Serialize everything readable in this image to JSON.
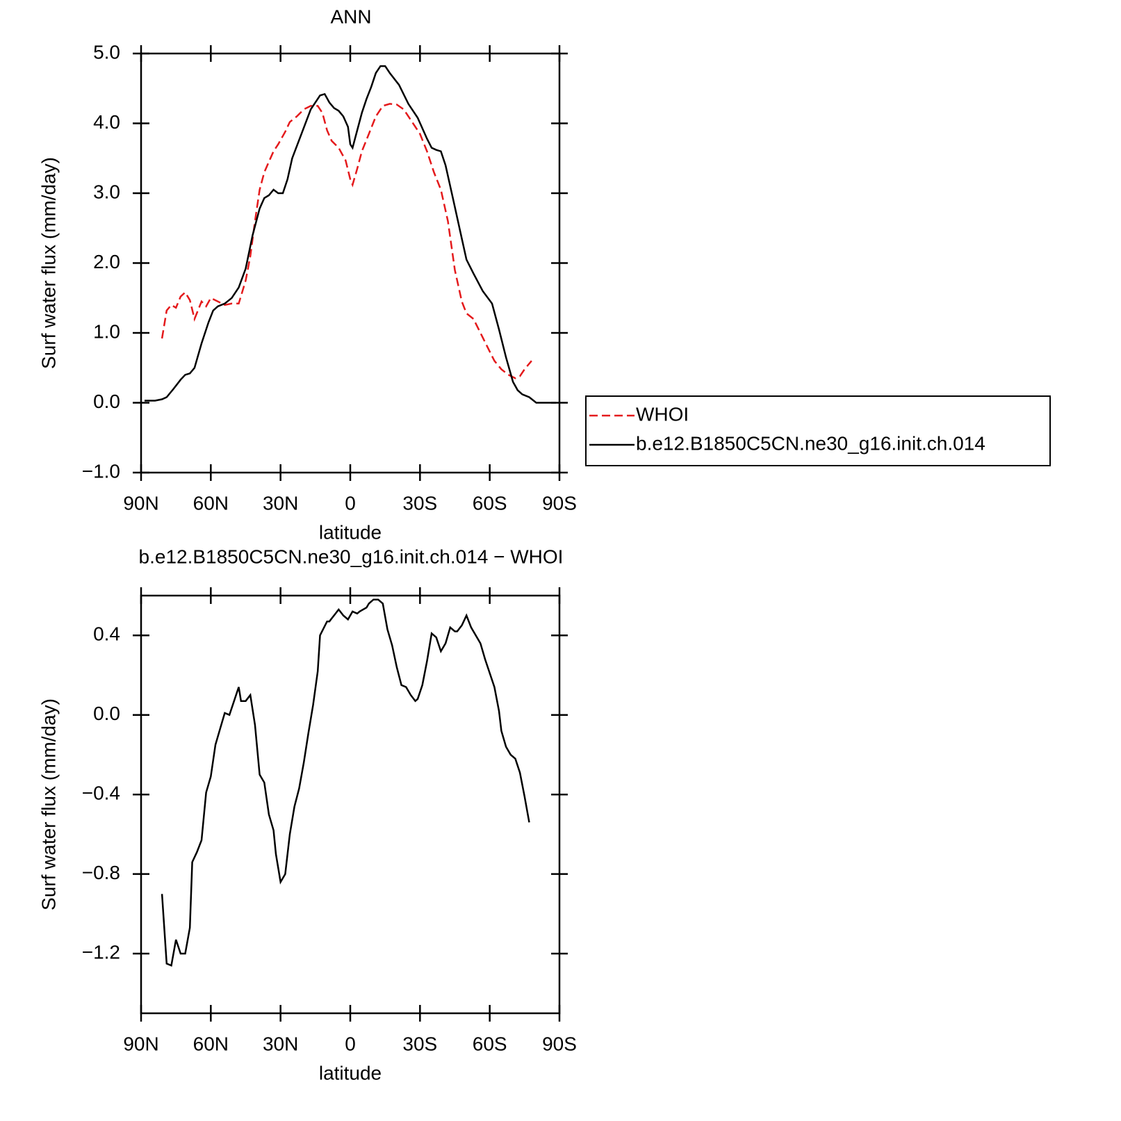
{
  "chart_data": [
    {
      "type": "line",
      "title": "ANN",
      "x_label": "latitude",
      "y_label": "Surf water flux (mm/day)",
      "xlim": [
        90,
        -90
      ],
      "xticks": [
        {
          "value": 90,
          "label": "90N"
        },
        {
          "value": 60,
          "label": "60N"
        },
        {
          "value": 30,
          "label": "30N"
        },
        0,
        {
          "value": -30,
          "label": "30S"
        },
        {
          "value": -60,
          "label": "60S"
        },
        {
          "value": -90,
          "label": "90S"
        }
      ],
      "ylim": [
        -1,
        5
      ],
      "yticks": [
        {
          "value": -1,
          "label": "−1.0"
        },
        {
          "value": 0,
          "label": "0.0"
        },
        {
          "value": 1,
          "label": "1.0"
        },
        {
          "value": 2,
          "label": "2.0"
        },
        {
          "value": 3,
          "label": "3.0"
        },
        {
          "value": 4,
          "label": "4.0"
        },
        {
          "value": 5,
          "label": "5.0"
        }
      ],
      "legend": "right",
      "series": [
        {
          "name": "WHOI",
          "color": "#e41a1c",
          "linestyle": "dashed",
          "x": [
            81,
            79,
            77,
            75,
            73,
            71,
            69,
            67,
            64,
            62,
            60,
            57,
            54,
            51,
            48,
            45,
            43,
            41,
            39,
            37,
            35,
            33,
            31,
            28,
            26,
            23,
            20,
            17,
            14,
            12,
            10,
            8,
            5,
            2,
            0,
            -1,
            -3,
            -5,
            -8,
            -11,
            -14,
            -17,
            -20,
            -23,
            -26,
            -30,
            -33,
            -36,
            -39,
            -42,
            -45,
            -48,
            -50,
            -53,
            -56,
            -59,
            -62,
            -65,
            -68,
            -71,
            -73,
            -75,
            -78
          ],
          "values": [
            0.92,
            1.32,
            1.4,
            1.36,
            1.52,
            1.58,
            1.47,
            1.2,
            1.45,
            1.38,
            1.5,
            1.45,
            1.4,
            1.42,
            1.42,
            1.75,
            2.1,
            2.6,
            3.05,
            3.3,
            3.45,
            3.6,
            3.7,
            3.88,
            4.02,
            4.1,
            4.2,
            4.25,
            4.25,
            4.15,
            3.9,
            3.75,
            3.65,
            3.47,
            3.2,
            3.12,
            3.35,
            3.6,
            3.85,
            4.1,
            4.25,
            4.28,
            4.27,
            4.2,
            4.05,
            3.85,
            3.6,
            3.3,
            3.05,
            2.6,
            1.9,
            1.45,
            1.28,
            1.2,
            1.0,
            0.8,
            0.6,
            0.48,
            0.4,
            0.35,
            0.38,
            0.48,
            0.6
          ]
        },
        {
          "name": "b.e12.B1850C5CN.ne30_g16.init.ch.014",
          "color": "#000000",
          "linestyle": "solid",
          "x": [
            88.5,
            84,
            81,
            79,
            76,
            73,
            71,
            69,
            67,
            64,
            61,
            59,
            57,
            54,
            51,
            48,
            45,
            42,
            39,
            37,
            35,
            33,
            31,
            29,
            27,
            25,
            21,
            17,
            13,
            11,
            9,
            7,
            5,
            3,
            1,
            0,
            -1,
            -3,
            -5,
            -7,
            -9,
            -11,
            -13,
            -15,
            -17,
            -21,
            -25,
            -29,
            -33,
            -35,
            -37,
            -39,
            -41,
            -44,
            -48,
            -50,
            -53,
            -57,
            -61,
            -64,
            -67,
            -70,
            -72,
            -74,
            -77,
            -80,
            -84,
            -88.5
          ],
          "values": [
            0.03,
            0.03,
            0.05,
            0.08,
            0.2,
            0.33,
            0.4,
            0.42,
            0.5,
            0.85,
            1.15,
            1.32,
            1.38,
            1.42,
            1.5,
            1.65,
            1.92,
            2.4,
            2.78,
            2.93,
            2.97,
            3.05,
            3.0,
            3.0,
            3.2,
            3.5,
            3.85,
            4.2,
            4.4,
            4.42,
            4.3,
            4.22,
            4.18,
            4.1,
            3.95,
            3.7,
            3.65,
            3.9,
            4.15,
            4.35,
            4.52,
            4.72,
            4.82,
            4.82,
            4.72,
            4.55,
            4.28,
            4.08,
            3.78,
            3.65,
            3.62,
            3.6,
            3.4,
            2.95,
            2.35,
            2.05,
            1.85,
            1.6,
            1.42,
            1.05,
            0.65,
            0.3,
            0.18,
            0.12,
            0.08,
            0.0,
            0.0,
            0.0
          ]
        }
      ]
    },
    {
      "type": "line",
      "title": "b.e12.B1850C5CN.ne30_g16.init.ch.014 − WHOI",
      "x_label": "latitude",
      "y_label": "Surf water flux (mm/day)",
      "xlim": [
        90,
        -90
      ],
      "xticks": [
        {
          "value": 90,
          "label": "90N"
        },
        {
          "value": 60,
          "label": "60N"
        },
        {
          "value": 30,
          "label": "30N"
        },
        0,
        {
          "value": -30,
          "label": "30S"
        },
        {
          "value": -60,
          "label": "60S"
        },
        {
          "value": -90,
          "label": "90S"
        }
      ],
      "ylim": [
        -1.5,
        0.6
      ],
      "yticks": [
        {
          "value": -1.2,
          "label": "−1.2"
        },
        {
          "value": -0.8,
          "label": "−0.8"
        },
        {
          "value": -0.4,
          "label": "−0.4"
        },
        {
          "value": 0,
          "label": "0.0"
        },
        0.4
      ],
      "series": [
        {
          "color": "#000000",
          "linestyle": "solid",
          "x": [
            81,
            79,
            77,
            75,
            73,
            71,
            69,
            68,
            66,
            64,
            62,
            60,
            58,
            56,
            54,
            52,
            50,
            48,
            47,
            45,
            43,
            41,
            39,
            37,
            35,
            33,
            32,
            30,
            28,
            26,
            24,
            22,
            20,
            18,
            16,
            14,
            13,
            10,
            9,
            7,
            5,
            3,
            1,
            -1,
            -3,
            -4,
            -7,
            -8,
            -10,
            -12,
            -14,
            -16,
            -18,
            -20,
            -22,
            -24,
            -26,
            -28,
            -29,
            -31,
            -33,
            -35,
            -37,
            -39,
            -41,
            -43,
            -45,
            -46,
            -48,
            -50,
            -52,
            -54,
            -56,
            -58,
            -60,
            -62,
            -64,
            -65,
            -67,
            -69,
            -71,
            -73,
            -75,
            -77
          ],
          "values": [
            -0.9,
            -1.25,
            -1.26,
            -1.13,
            -1.2,
            -1.2,
            -1.07,
            -0.74,
            -0.69,
            -0.63,
            -0.39,
            -0.31,
            -0.15,
            -0.07,
            0.01,
            0.0,
            0.07,
            0.14,
            0.07,
            0.07,
            0.1,
            -0.05,
            -0.3,
            -0.34,
            -0.5,
            -0.58,
            -0.7,
            -0.84,
            -0.8,
            -0.6,
            -0.46,
            -0.37,
            -0.24,
            -0.09,
            0.05,
            0.22,
            0.4,
            0.47,
            0.47,
            0.5,
            0.53,
            0.5,
            0.48,
            0.52,
            0.51,
            0.52,
            0.54,
            0.56,
            0.58,
            0.58,
            0.56,
            0.43,
            0.35,
            0.24,
            0.15,
            0.14,
            0.1,
            0.07,
            0.08,
            0.15,
            0.27,
            0.41,
            0.39,
            0.32,
            0.36,
            0.44,
            0.42,
            0.42,
            0.45,
            0.5,
            0.44,
            0.4,
            0.36,
            0.28,
            0.21,
            0.14,
            0.02,
            -0.08,
            -0.16,
            -0.2,
            -0.22,
            -0.29,
            -0.41,
            -0.54
          ]
        }
      ]
    }
  ]
}
